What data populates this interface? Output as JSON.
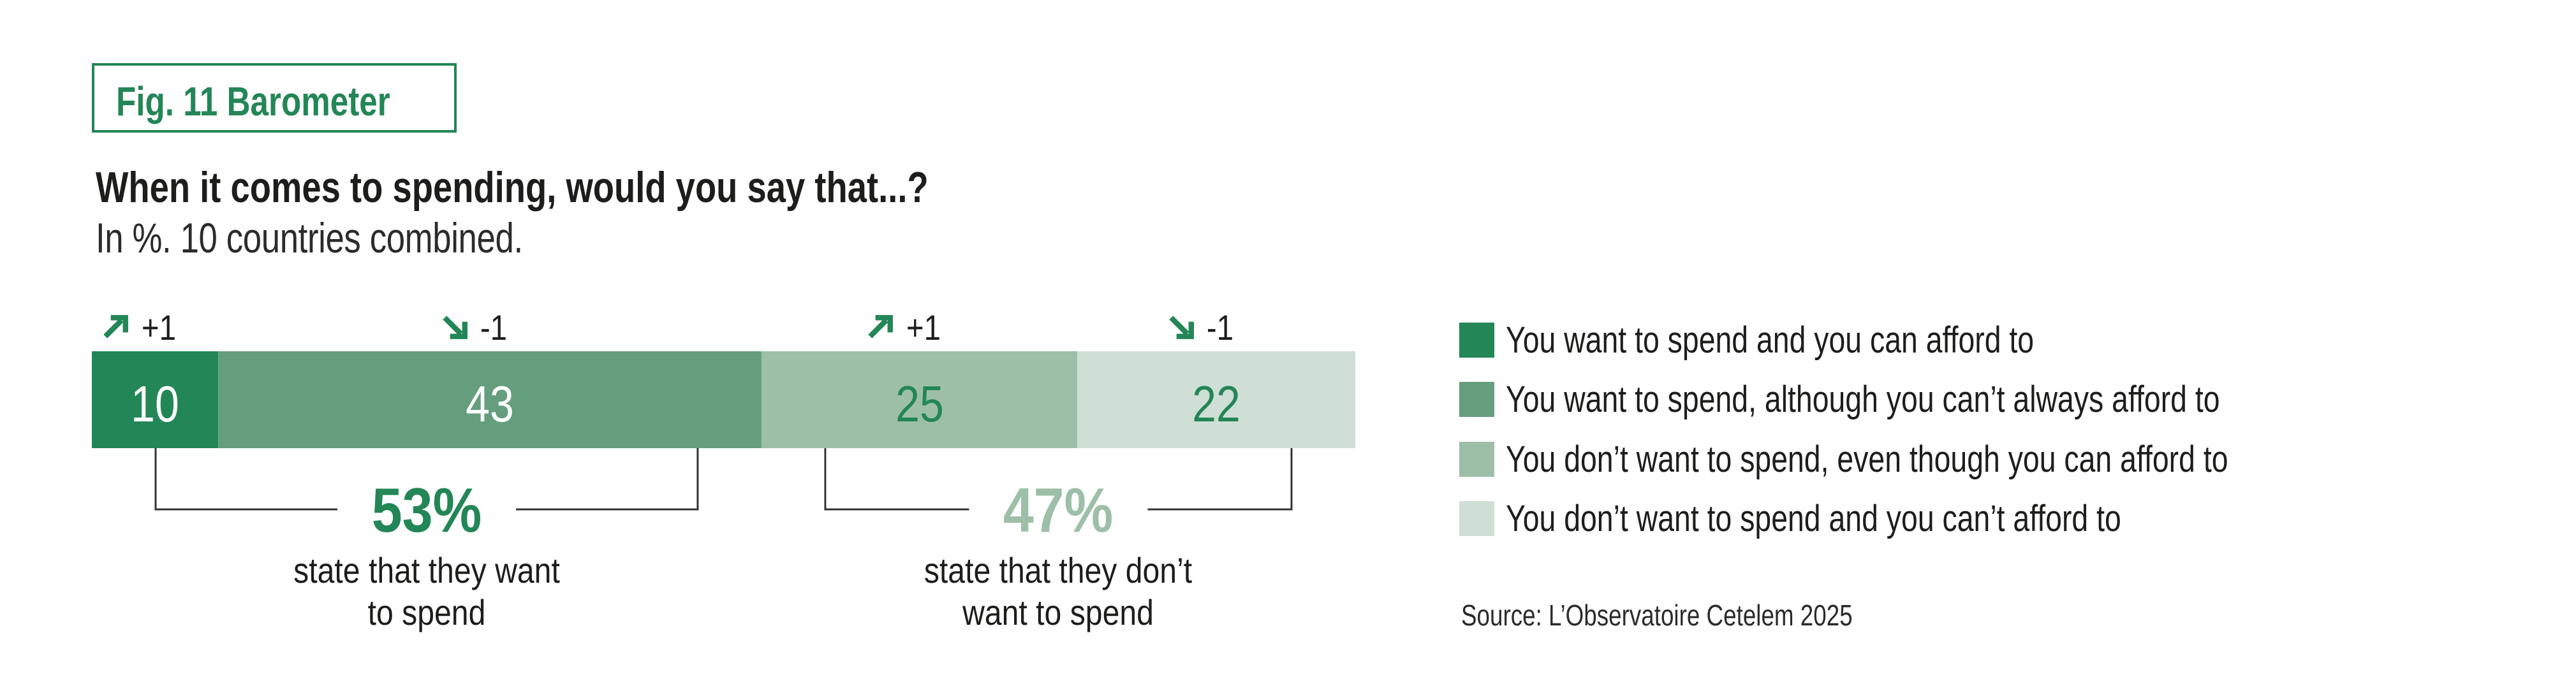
{
  "figure": {
    "label": "Fig. 11 Barometer",
    "title": "When it comes to spending, would you say that...?",
    "subtitle": "In %. 10 countries combined.",
    "source": "Source: L’Observatoire Cetelem 2025"
  },
  "colors": {
    "accent": "#238656",
    "text": "#1d1d1b",
    "bracket": "#333333",
    "segment_1": "#238656",
    "segment_2": "#659e7d",
    "segment_3": "#9dbfa7",
    "segment_4": "#cfdfd5"
  },
  "chart_data": {
    "type": "bar",
    "orientation": "horizontal-stacked",
    "title": "When it comes to spending, would you say that...?",
    "subtitle": "In %. 10 countries combined.",
    "unit": "%",
    "xlim": [
      0,
      100
    ],
    "series": [
      {
        "name": "You want to spend and you can afford to",
        "value": 10,
        "change": "+1",
        "trend": "up",
        "color": "#238656",
        "label_color": "#ffffff"
      },
      {
        "name": "You want to spend, although you can’t always afford to",
        "value": 43,
        "change": "-1",
        "trend": "down",
        "color": "#659e7d",
        "label_color": "#ffffff"
      },
      {
        "name": "You don’t want to spend, even though you can afford to",
        "value": 25,
        "change": "+1",
        "trend": "up",
        "color": "#9dbfa7",
        "label_color": "#238656"
      },
      {
        "name": "You don’t want to spend and you can’t afford to",
        "value": 22,
        "change": "-1",
        "trend": "down",
        "color": "#cfdfd5",
        "label_color": "#238656"
      }
    ],
    "groups": [
      {
        "value": "53%",
        "caption_line1": "state that they want",
        "caption_line2": "to spend",
        "color": "#238656",
        "segments": [
          0,
          1
        ]
      },
      {
        "value": "47%",
        "caption_line1": "state that they don’t",
        "caption_line2": "want to spend",
        "color": "#9dbfa7",
        "segments": [
          2,
          3
        ]
      }
    ],
    "legend": {
      "position": "right"
    }
  },
  "icons": {
    "up": "trend-up-arrow-icon",
    "down": "trend-down-arrow-icon"
  }
}
